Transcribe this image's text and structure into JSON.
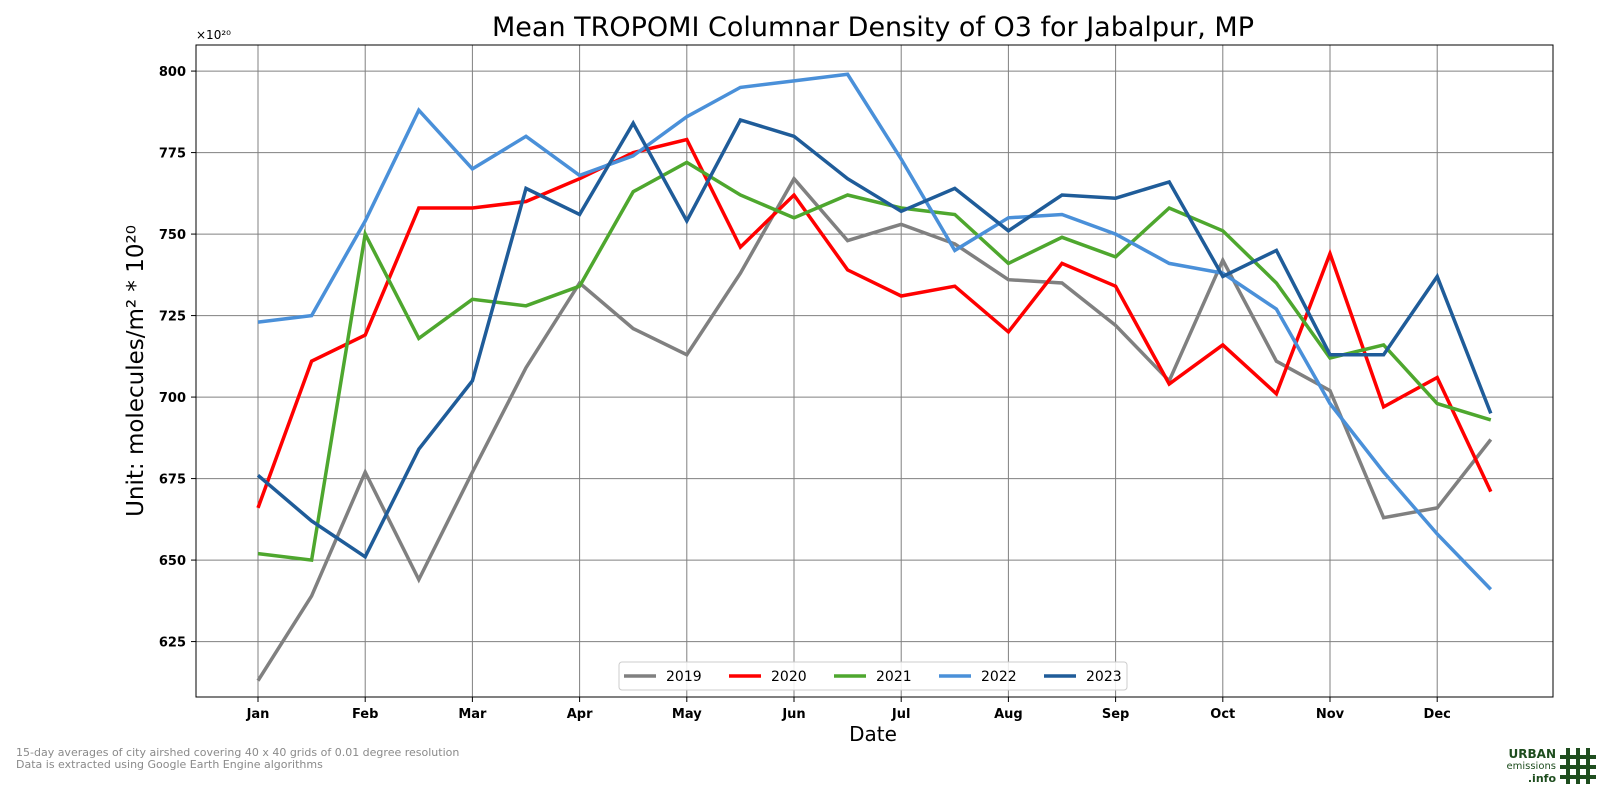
{
  "chart_data": {
    "type": "line",
    "title": "Mean TROPOMI Columnar Density of O3 for Jabalpur, MP",
    "xlabel": "Date",
    "ylabel": "Unit: molecules/m² * 10²⁰",
    "y_offset_label": "×10²⁰",
    "ylim": [
      608,
      808
    ],
    "y_ticks": [
      625,
      650,
      675,
      700,
      725,
      750,
      775,
      800
    ],
    "x_ticks": [
      "Jan",
      "Feb",
      "Mar",
      "Apr",
      "May",
      "Jun",
      "Jul",
      "Aug",
      "Sep",
      "Oct",
      "Nov",
      "Dec"
    ],
    "x_points_per_month": 2,
    "grid": true,
    "legend_placement": "bottom-center",
    "series": [
      {
        "name": "2019",
        "color": "#808080",
        "values": [
          613,
          639,
          677,
          644,
          677,
          709,
          735,
          721,
          713,
          738,
          767,
          748,
          753,
          747,
          736,
          735,
          722,
          705,
          742,
          711,
          702,
          663,
          666,
          687
        ]
      },
      {
        "name": "2020",
        "color": "#ff0000",
        "values": [
          666,
          711,
          719,
          758,
          758,
          760,
          767,
          775,
          779,
          746,
          762,
          739,
          731,
          734,
          720,
          741,
          734,
          704,
          716,
          701,
          744,
          697,
          706,
          671
        ]
      },
      {
        "name": "2021",
        "color": "#4ea72e",
        "values": [
          652,
          650,
          750,
          718,
          730,
          728,
          734,
          763,
          772,
          762,
          755,
          762,
          758,
          756,
          741,
          749,
          743,
          758,
          751,
          735,
          712,
          716,
          698,
          693
        ]
      },
      {
        "name": "2022",
        "color": "#4a90d9",
        "values": [
          723,
          725,
          754,
          788,
          770,
          780,
          768,
          774,
          786,
          795,
          797,
          799,
          773,
          745,
          755,
          756,
          750,
          741,
          738,
          727,
          698,
          677,
          658,
          641
        ]
      },
      {
        "name": "2023",
        "color": "#1f5c99",
        "values": [
          676,
          662,
          651,
          684,
          705,
          764,
          756,
          784,
          754,
          785,
          780,
          767,
          757,
          764,
          751,
          762,
          761,
          766,
          737,
          745,
          713,
          713,
          737,
          695
        ]
      }
    ]
  },
  "footnotes": [
    "15-day averages of city airshed covering 40 x 40 grids of 0.01 degree resolution",
    "Data is extracted using Google Earth Engine algorithms"
  ],
  "logo": {
    "line1": "URBAN",
    "line2": "emissions",
    "line3": ".info",
    "color": "#1e4d1e"
  }
}
